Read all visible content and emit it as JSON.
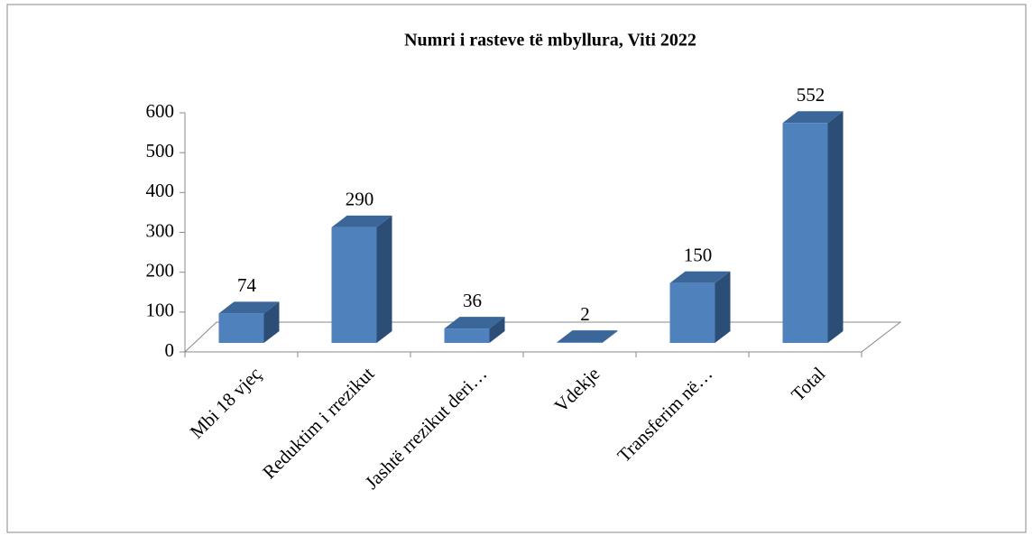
{
  "chart_data": {
    "type": "bar",
    "title": "Numri i rasteve të mbyllura, Viti 2022",
    "categories": [
      "Mbi 18 vjeç",
      "Reduktim i rrezikut",
      "Jashtë rrezikut deri…",
      "Vdekje",
      "Transferim në…",
      "Total"
    ],
    "values": [
      74,
      290,
      36,
      2,
      150,
      552
    ],
    "color": "#4f81bd",
    "ylim": [
      0,
      600
    ],
    "yticks": [
      0,
      100,
      200,
      300,
      400,
      500,
      600
    ]
  }
}
